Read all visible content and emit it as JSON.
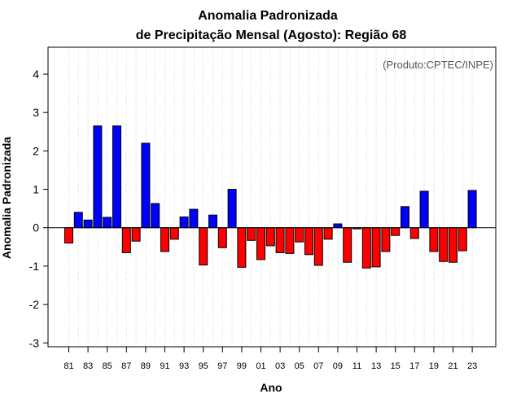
{
  "chart_data": {
    "type": "bar",
    "title_line1": "Anomalia Padronizada",
    "title_line2": "de Precipitação Mensal (Agosto): Região 68",
    "xlabel": "Ano",
    "ylabel": "Anomalia Padronizada",
    "credit": "(Produto:CPTEC/INPE)",
    "ylim": [
      -3.1,
      4.7
    ],
    "yticks": [
      -3,
      -2,
      -1,
      0,
      1,
      2,
      3,
      4
    ],
    "grid": "vertical dotted",
    "legend": "none",
    "colors": {
      "positive": "#0000ff",
      "negative": "#ff0000",
      "grid": "#d0d0d0",
      "axis": "#000000"
    },
    "categories": [
      "81",
      "82",
      "83",
      "84",
      "85",
      "86",
      "87",
      "88",
      "89",
      "90",
      "91",
      "92",
      "93",
      "94",
      "95",
      "96",
      "97",
      "98",
      "99",
      "00",
      "01",
      "02",
      "03",
      "04",
      "05",
      "06",
      "07",
      "08",
      "09",
      "10",
      "11",
      "12",
      "13",
      "14",
      "15",
      "16",
      "17",
      "18",
      "19",
      "20",
      "21",
      "22",
      "23"
    ],
    "tick_labels": [
      "81",
      "83",
      "85",
      "87",
      "89",
      "91",
      "93",
      "95",
      "97",
      "99",
      "01",
      "03",
      "05",
      "07",
      "09",
      "11",
      "13",
      "15",
      "17",
      "19",
      "21",
      "23"
    ],
    "values": [
      -0.4,
      0.4,
      0.2,
      2.65,
      0.27,
      2.65,
      -0.65,
      -0.35,
      2.2,
      0.63,
      -0.62,
      -0.3,
      0.28,
      0.48,
      -0.97,
      0.33,
      -0.52,
      1.0,
      -1.03,
      -0.33,
      -0.83,
      -0.47,
      -0.65,
      -0.67,
      -0.37,
      -0.7,
      -0.98,
      -0.3,
      0.1,
      -0.9,
      -0.03,
      -1.05,
      -1.02,
      -0.62,
      -0.2,
      0.55,
      -0.28,
      0.95,
      -0.62,
      -0.88,
      -0.9,
      -0.6,
      0.97
    ]
  }
}
